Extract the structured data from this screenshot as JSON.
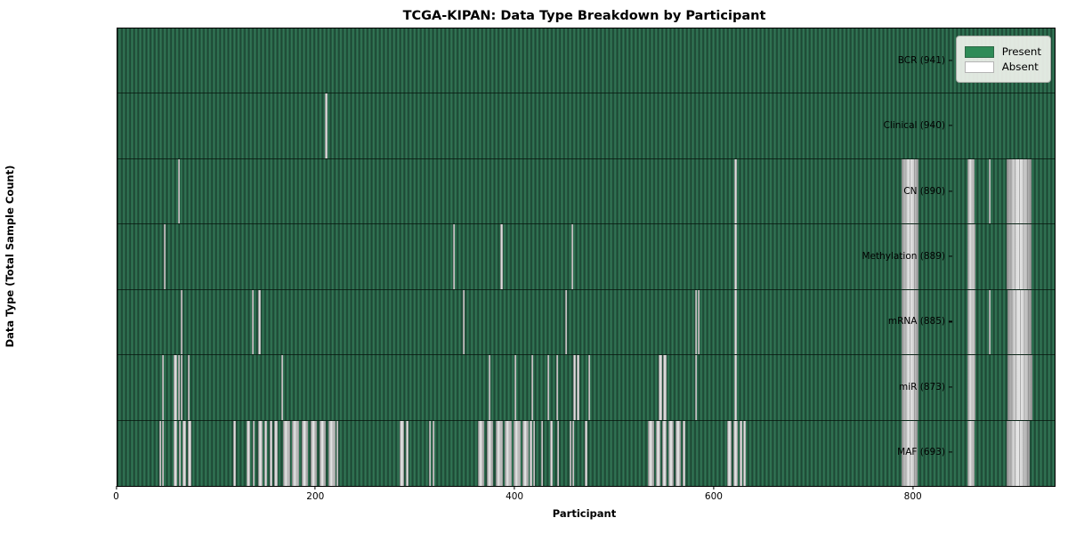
{
  "chart_data": {
    "type": "heatmap",
    "title": "TCGA-KIPAN: Data Type Breakdown by Participant",
    "xlabel": "Participant",
    "ylabel": "Data Type (Total Sample Count)",
    "x_ticks": [
      0,
      200,
      400,
      600,
      800
    ],
    "x_max": 941,
    "grid": false,
    "legend": {
      "position": "upper-right",
      "entries": [
        {
          "label": "Present",
          "color": "#2e8b57"
        },
        {
          "label": "Absent",
          "color": "#ffffff"
        }
      ]
    },
    "colors": {
      "present_fill": "#2e8b57",
      "absent_fill": "#ffffff",
      "stripe_gray": "#bdbdbd"
    },
    "rows": [
      {
        "label": "BCR (941)",
        "data_type": "BCR",
        "total_samples": 941,
        "absent_ranges": []
      },
      {
        "label": "Clinical (940)",
        "data_type": "Clinical",
        "total_samples": 940,
        "absent_ranges": [
          [
            209,
            211
          ]
        ]
      },
      {
        "label": "CN (890)",
        "data_type": "CN",
        "total_samples": 890,
        "absent_ranges": [
          [
            61,
            63
          ],
          [
            620,
            622
          ],
          [
            788,
            805
          ],
          [
            854,
            861
          ],
          [
            875,
            877
          ],
          [
            893,
            918
          ]
        ]
      },
      {
        "label": "Methylation (889)",
        "data_type": "Methylation",
        "total_samples": 889,
        "absent_ranges": [
          [
            47,
            49
          ],
          [
            337,
            339
          ],
          [
            385,
            387
          ],
          [
            456,
            458
          ],
          [
            620,
            622
          ],
          [
            788,
            805
          ],
          [
            854,
            862
          ],
          [
            893,
            918
          ]
        ]
      },
      {
        "label": "mRNA (885)",
        "data_type": "mRNA",
        "total_samples": 885,
        "absent_ranges": [
          [
            64,
            66
          ],
          [
            135,
            137
          ],
          [
            142,
            144
          ],
          [
            347,
            349
          ],
          [
            450,
            452
          ],
          [
            580,
            582
          ],
          [
            583,
            585
          ],
          [
            620,
            622
          ],
          [
            788,
            805
          ],
          [
            854,
            862
          ],
          [
            875,
            877
          ],
          [
            894,
            918
          ]
        ]
      },
      {
        "label": "miR (873)",
        "data_type": "miR",
        "total_samples": 873,
        "absent_ranges": [
          [
            45,
            47
          ],
          [
            57,
            60
          ],
          [
            61,
            63
          ],
          [
            64,
            66
          ],
          [
            71,
            73
          ],
          [
            165,
            167
          ],
          [
            373,
            375
          ],
          [
            399,
            401
          ],
          [
            416,
            418
          ],
          [
            432,
            434
          ],
          [
            441,
            443
          ],
          [
            458,
            461
          ],
          [
            462,
            464
          ],
          [
            473,
            475
          ],
          [
            544,
            547
          ],
          [
            548,
            552
          ],
          [
            580,
            582
          ],
          [
            620,
            622
          ],
          [
            788,
            805
          ],
          [
            854,
            862
          ],
          [
            894,
            919
          ]
        ]
      },
      {
        "label": "MAF (693)",
        "data_type": "MAF",
        "total_samples": 693,
        "absent_ranges": [
          [
            42,
            44
          ],
          [
            45,
            47
          ],
          [
            57,
            60
          ],
          [
            62,
            64
          ],
          [
            66,
            69
          ],
          [
            71,
            75
          ],
          [
            117,
            119
          ],
          [
            130,
            134
          ],
          [
            136,
            138
          ],
          [
            142,
            146
          ],
          [
            148,
            151
          ],
          [
            153,
            156
          ],
          [
            158,
            161
          ],
          [
            167,
            174
          ],
          [
            176,
            183
          ],
          [
            185,
            192
          ],
          [
            194,
            201
          ],
          [
            203,
            210
          ],
          [
            212,
            219
          ],
          [
            220,
            222
          ],
          [
            284,
            288
          ],
          [
            290,
            293
          ],
          [
            313,
            315
          ],
          [
            317,
            319
          ],
          [
            362,
            369
          ],
          [
            371,
            378
          ],
          [
            380,
            387
          ],
          [
            389,
            396
          ],
          [
            398,
            405
          ],
          [
            407,
            413
          ],
          [
            414,
            417
          ],
          [
            418,
            420
          ],
          [
            426,
            428
          ],
          [
            435,
            437
          ],
          [
            442,
            444
          ],
          [
            454,
            456
          ],
          [
            457,
            459
          ],
          [
            470,
            472
          ],
          [
            533,
            539
          ],
          [
            541,
            546
          ],
          [
            547,
            552
          ],
          [
            554,
            559
          ],
          [
            561,
            566
          ],
          [
            568,
            571
          ],
          [
            613,
            617
          ],
          [
            619,
            623
          ],
          [
            625,
            628
          ],
          [
            629,
            631
          ],
          [
            788,
            804
          ],
          [
            854,
            861
          ],
          [
            893,
            916
          ]
        ]
      }
    ]
  }
}
